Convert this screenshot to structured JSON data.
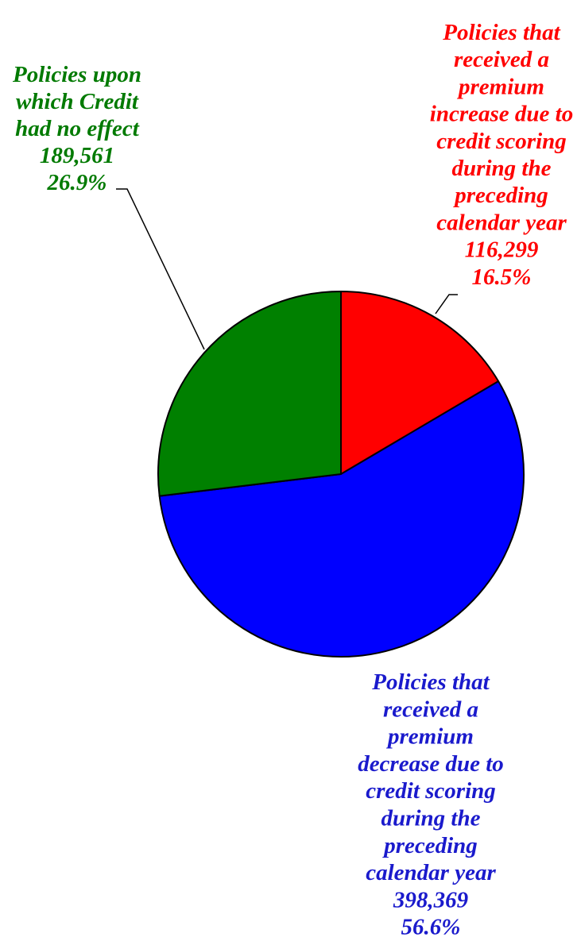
{
  "chart_data": {
    "type": "pie",
    "slices": [
      {
        "name": "Policies that received a premium increase due to credit scoring during the preceding calendar year",
        "label_lines": [
          "Policies that",
          "received a",
          "premium",
          "increase due to",
          "credit scoring",
          "during the",
          "preceding",
          "calendar  year"
        ],
        "count_label": "116,299",
        "pct_label": "16.5%",
        "value": 116299,
        "percent": 16.5,
        "color": "#ff0000"
      },
      {
        "name": "Policies that received a premium decrease due to credit scoring during the preceding calendar year",
        "label_lines": [
          "Policies that",
          "received a",
          "premium",
          "decrease due to",
          "credit scoring",
          "during the",
          "preceding",
          "calendar  year"
        ],
        "count_label": "398,369",
        "pct_label": "56.6%",
        "value": 398369,
        "percent": 56.6,
        "color": "#0000ff"
      },
      {
        "name": "Policies upon which Credit had no effect",
        "label_lines": [
          "Policies upon",
          "which Credit",
          "had no effect"
        ],
        "count_label": "189,561",
        "pct_label": "26.9%",
        "value": 189561,
        "percent": 26.9,
        "color": "#008000"
      }
    ],
    "start_angle": "12 o'clock",
    "direction": "clockwise",
    "legend": "none"
  },
  "colors": {
    "increase": "#ff0000",
    "decrease": "#0000ff",
    "no_effect": "#008000",
    "text_increase": "#ff0000",
    "text_decrease": "#1a1acc",
    "text_no_effect": "#007a00"
  }
}
